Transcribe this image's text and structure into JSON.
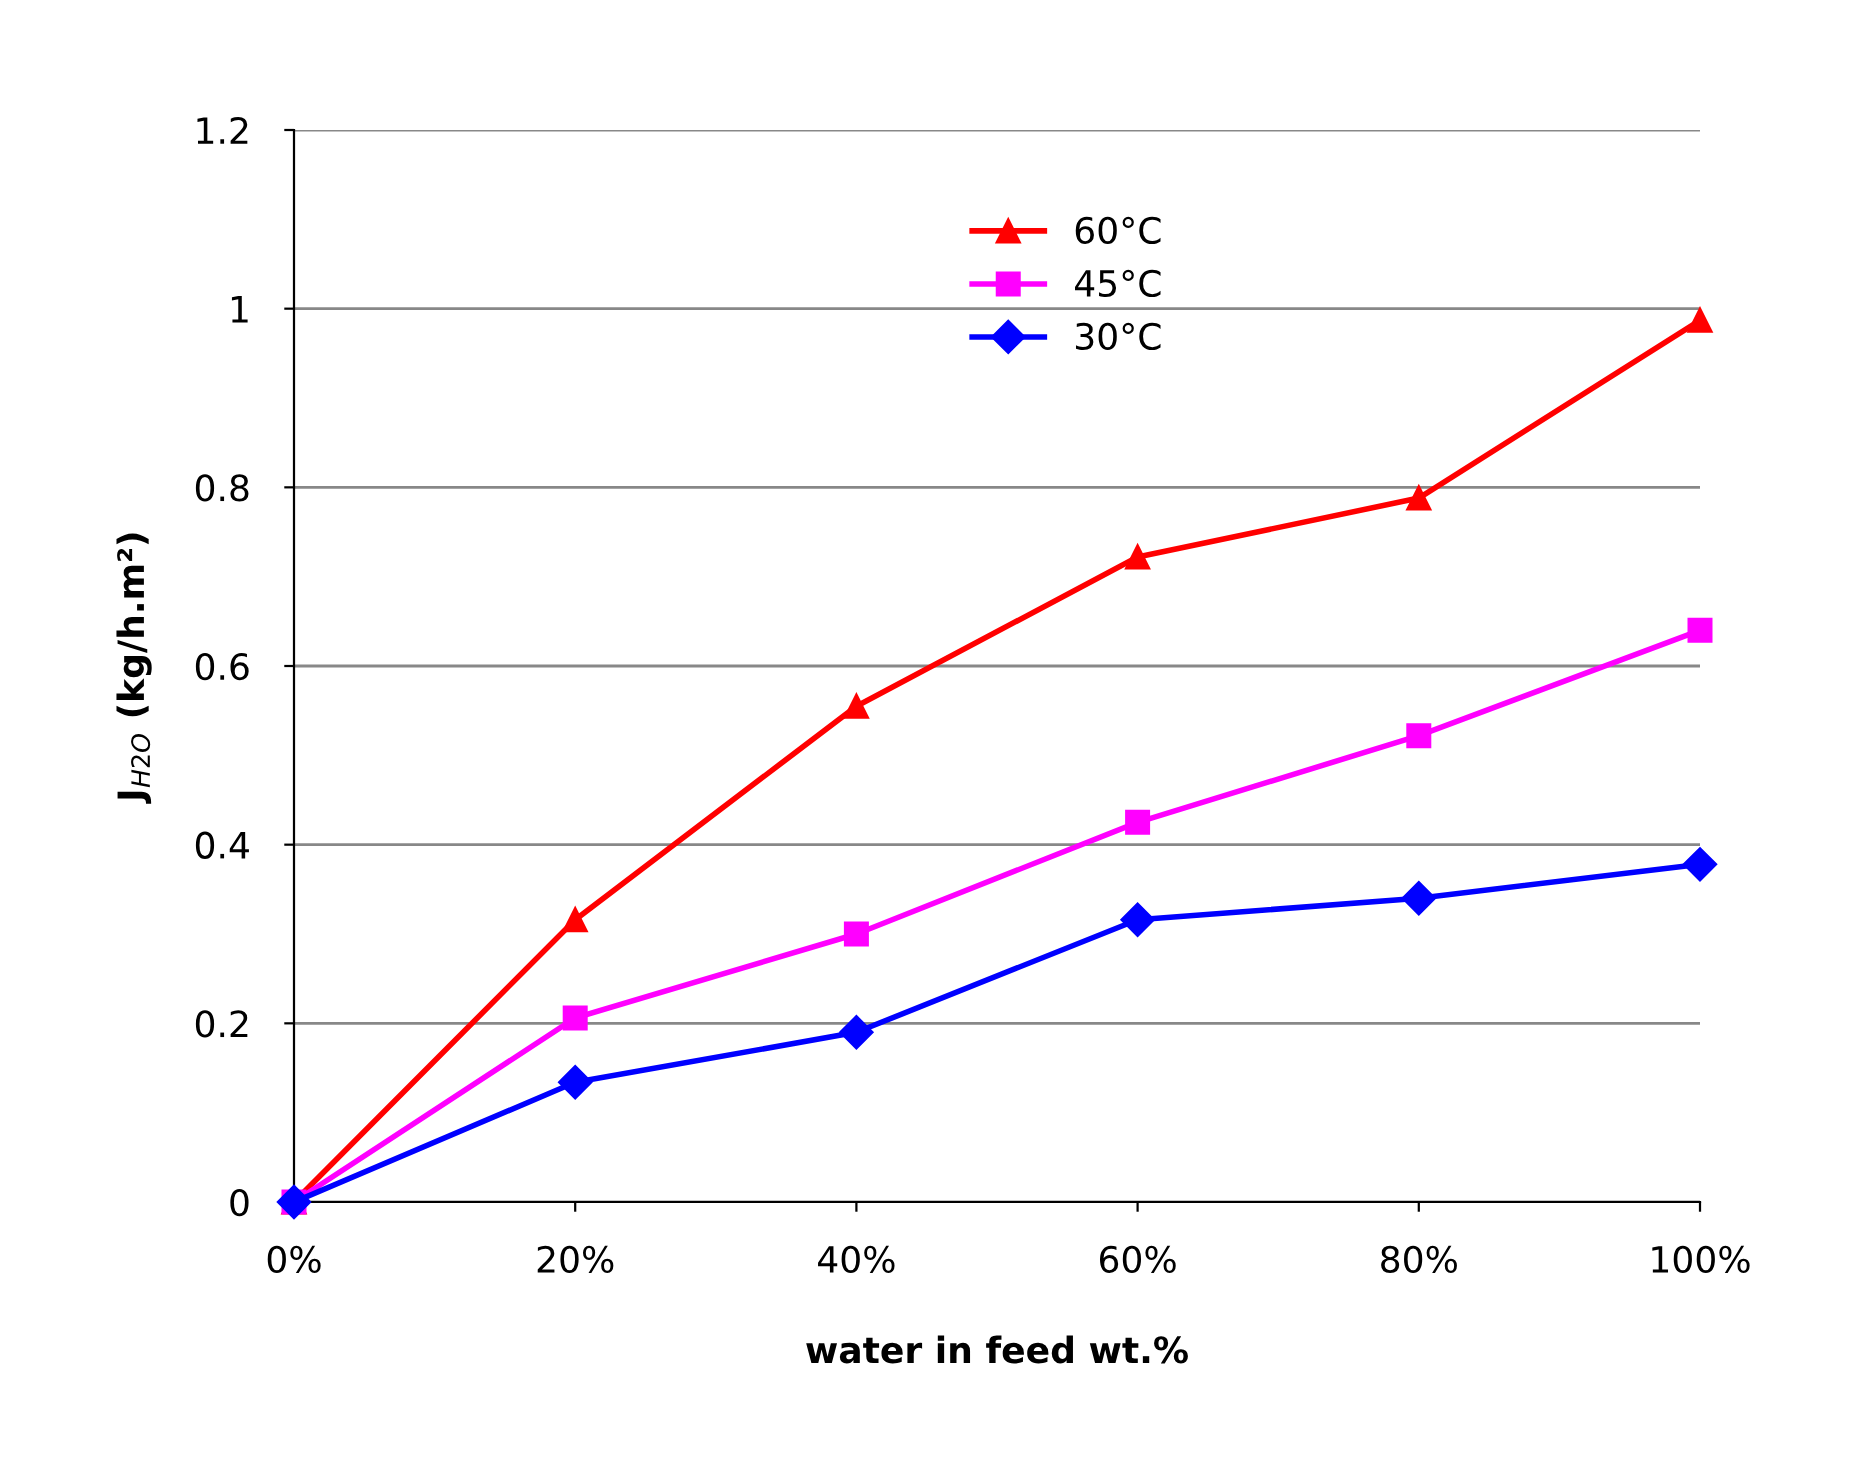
{
  "chart_data": {
    "type": "line",
    "xlabel": "water in feed wt.%",
    "ylabel": "J$_{H2O}$ (kg/h.m²)",
    "categories": [
      "0%",
      "20%",
      "40%",
      "60%",
      "80%",
      "100%"
    ],
    "series": [
      {
        "name": "60°C",
        "color": "#ff0000",
        "marker": "triangle",
        "values": [
          0,
          0.316,
          0.555,
          0.722,
          0.788,
          0.987
        ]
      },
      {
        "name": "45°C",
        "color": "#ff00ff",
        "marker": "square",
        "values": [
          0,
          0.206,
          0.3,
          0.425,
          0.522,
          0.64
        ]
      },
      {
        "name": "30°C",
        "color": "#0000ff",
        "marker": "diamond",
        "values": [
          0,
          0.134,
          0.19,
          0.316,
          0.34,
          0.378
        ]
      }
    ],
    "ylim": [
      0,
      1.2
    ],
    "yticks": [
      0,
      0.2,
      0.4,
      0.6,
      0.8,
      1,
      1.2
    ],
    "grid": "y",
    "legend": "top center",
    "line_style": "solid"
  }
}
